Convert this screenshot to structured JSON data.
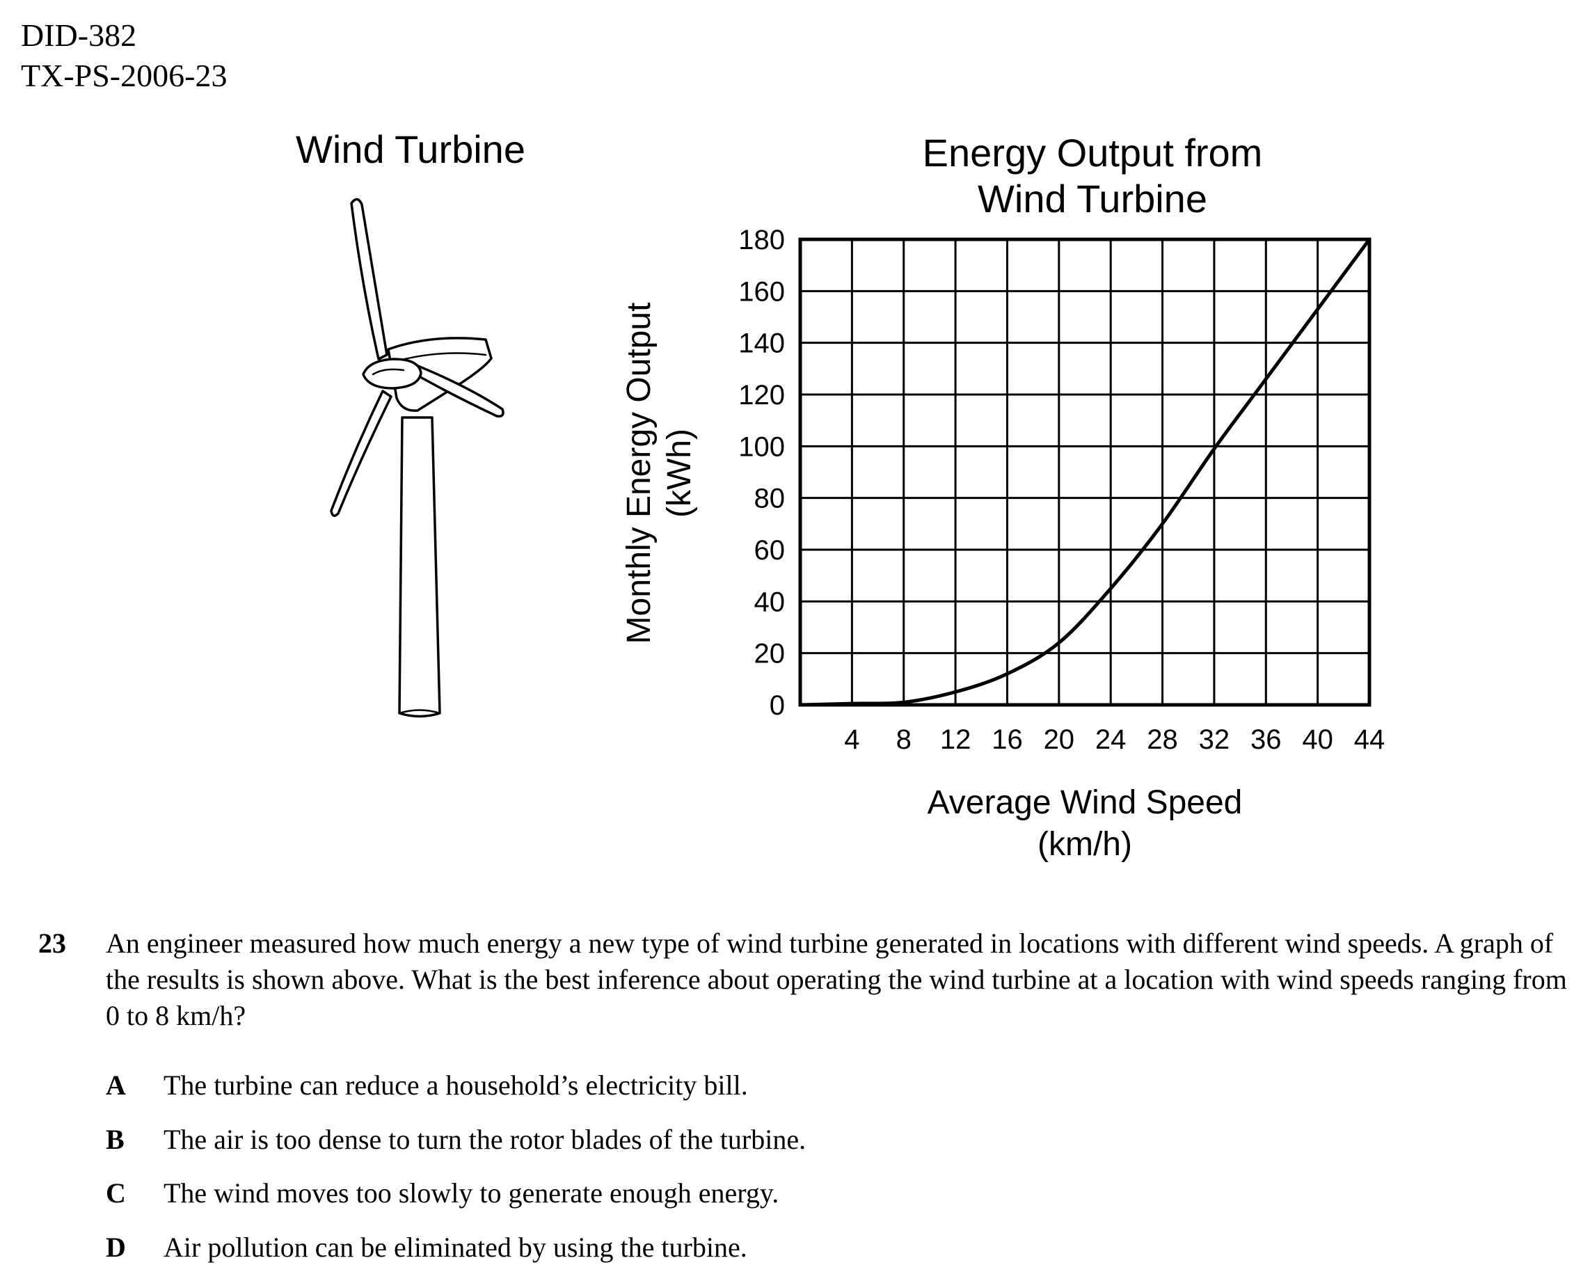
{
  "header": {
    "id_line": "DID-382",
    "code_line": "TX-PS-2006-23"
  },
  "figure": {
    "title": "Wind Turbine",
    "icon": "wind-turbine-illustration"
  },
  "chart_data": {
    "type": "line",
    "title": "Energy Output from\nWind Turbine",
    "xlabel": "Average Wind Speed\n(km/h)",
    "ylabel": "Monthly Energy Output\n(kWh)",
    "xlim": [
      0,
      44
    ],
    "ylim": [
      0,
      180
    ],
    "xticks": [
      4,
      8,
      12,
      16,
      20,
      24,
      28,
      32,
      36,
      40,
      44
    ],
    "yticks": [
      0,
      20,
      40,
      60,
      80,
      100,
      120,
      140,
      160,
      180
    ],
    "grid": true,
    "legend": "none",
    "x": [
      0,
      4,
      8,
      12,
      16,
      20,
      24,
      28,
      32,
      36,
      40,
      44
    ],
    "y": [
      0,
      0.5,
      1,
      5,
      12,
      24,
      45,
      70,
      99,
      126,
      153,
      180
    ]
  },
  "question": {
    "number": "23",
    "text": "An engineer measured how much energy a new type of wind turbine generated in locations with different wind speeds. A graph of the results is shown above. What is the best inference about operating the wind turbine at a location with wind speeds ranging from 0 to 8 km/h?",
    "options": [
      {
        "letter": "A",
        "text": "The turbine can reduce a household’s electricity bill."
      },
      {
        "letter": "B",
        "text": "The air is too dense to turn the rotor blades of the turbine."
      },
      {
        "letter": "C",
        "text": "The wind moves too slowly to generate enough energy."
      },
      {
        "letter": "D",
        "text": "Air pollution can be eliminated by using the turbine."
      }
    ]
  }
}
